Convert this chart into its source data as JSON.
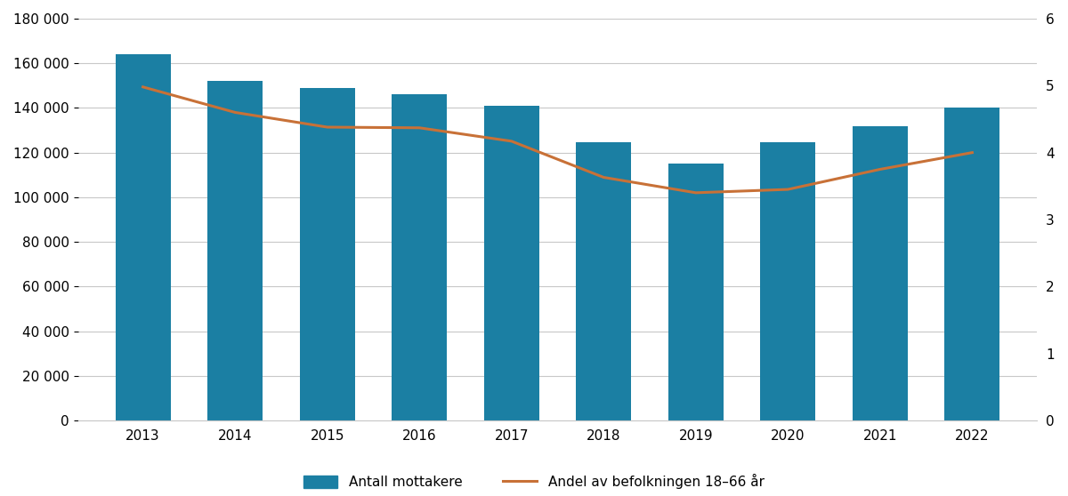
{
  "years": [
    2013,
    2014,
    2015,
    2016,
    2017,
    2018,
    2019,
    2020,
    2021,
    2022
  ],
  "bar_values": [
    164000,
    152000,
    149000,
    146000,
    141000,
    124500,
    115000,
    124500,
    132000,
    140000
  ],
  "line_values": [
    4.98,
    4.6,
    4.38,
    4.37,
    4.17,
    3.63,
    3.4,
    3.45,
    3.75,
    4.0
  ],
  "bar_color": "#1b7fa3",
  "line_color": "#c87137",
  "ylim_left": [
    0,
    180000
  ],
  "ylim_right": [
    0,
    6
  ],
  "yticks_left": [
    0,
    20000,
    40000,
    60000,
    80000,
    100000,
    120000,
    140000,
    160000,
    180000
  ],
  "yticks_right": [
    0,
    1,
    2,
    3,
    4,
    5,
    6
  ],
  "legend_bar_label": "Antall mottakere",
  "legend_line_label": "Andel av befolkningen 18–66 år",
  "background_color": "#ffffff",
  "grid_color": "#c8c8c8",
  "bar_width": 0.6
}
